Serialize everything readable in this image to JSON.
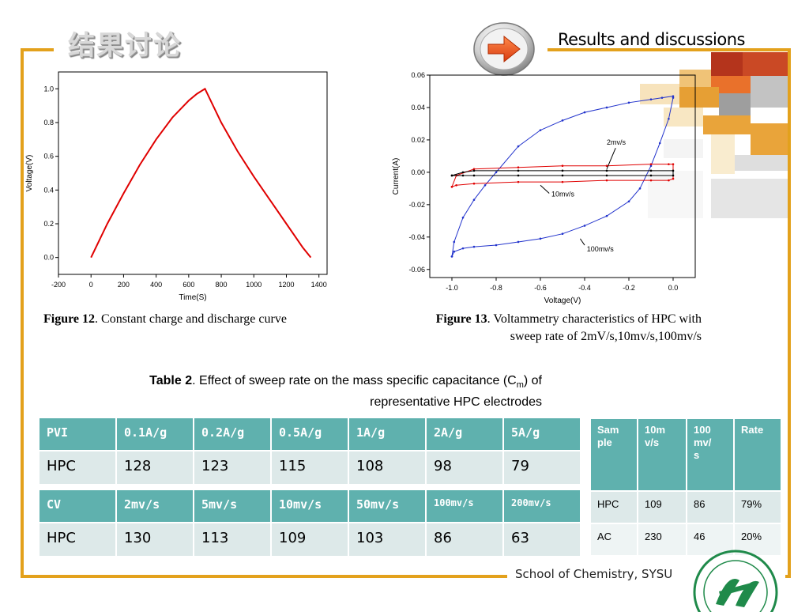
{
  "header": {
    "title_cn": "结果讨论",
    "title_en": "Results and discussions"
  },
  "colors": {
    "accent": "#e3a11c",
    "table_header": "#5fb1ae",
    "table_row": "#dde9e9",
    "curve_red": "#e00000",
    "curve_blue": "#2233cc"
  },
  "icons": {
    "nav": "arrow-right-icon",
    "logo": "university-seal-icon"
  },
  "figures": {
    "fig12": {
      "label": "Figure 12",
      "text": ". Constant charge and discharge curve"
    },
    "fig13": {
      "label": "Figure 13",
      "text_line1": ". Voltammetry characteristics of HPC with",
      "text_line2": "sweep rate of 2mV/s,10mv/s,100mv/s"
    }
  },
  "chart_data": [
    {
      "type": "line",
      "title": "",
      "xlabel": "Time(S)",
      "ylabel": "Voltage(V)",
      "xlim": [
        -200,
        1450
      ],
      "ylim": [
        -0.1,
        1.1
      ],
      "xticks": [
        -200,
        0,
        200,
        400,
        600,
        800,
        1000,
        1200,
        1400
      ],
      "yticks": [
        0.0,
        0.2,
        0.4,
        0.6,
        0.8,
        1.0
      ],
      "xtick_labels": [
        "-200",
        "0",
        "200",
        "400",
        "600",
        "800",
        "1000",
        "1200",
        "1400"
      ],
      "ytick_labels": [
        "0.0",
        "0.2",
        "0.4",
        "0.6",
        "0.8",
        "1.0"
      ],
      "series": [
        {
          "x": [
            0,
            100,
            200,
            300,
            400,
            500,
            600,
            650,
            700,
            720,
            800,
            900,
            1000,
            1100,
            1200,
            1300,
            1350
          ],
          "y": [
            0.0,
            0.2,
            0.38,
            0.55,
            0.7,
            0.83,
            0.93,
            0.97,
            1.0,
            0.96,
            0.8,
            0.63,
            0.48,
            0.34,
            0.2,
            0.06,
            0.0
          ]
        }
      ],
      "grid": false
    },
    {
      "type": "line",
      "title": "",
      "xlabel": "Voltage(V)",
      "ylabel": "Current(A)",
      "xlim": [
        -1.1,
        0.1
      ],
      "ylim": [
        -0.065,
        0.06
      ],
      "xticks": [
        -1.0,
        -0.8,
        -0.6,
        -0.4,
        -0.2,
        0.0
      ],
      "yticks": [
        -0.06,
        -0.04,
        -0.02,
        0.0,
        0.02,
        0.04,
        0.06
      ],
      "xtick_labels": [
        "-1.0",
        "-0.8",
        "-0.6",
        "-0.4",
        "-0.2",
        "0.0"
      ],
      "ytick_labels": [
        "-0.06",
        "-0.04",
        "-0.02",
        "0.00",
        "0.02",
        "0.04",
        "0.06"
      ],
      "annotations": [
        "2mv/s",
        "10mv/s",
        "100mv/s"
      ],
      "series": [
        {
          "x": [
            -1.0,
            -0.99,
            -0.95,
            -0.9,
            -0.85,
            -0.8,
            -0.7,
            -0.6,
            -0.5,
            -0.4,
            -0.3,
            -0.2,
            -0.1,
            -0.05,
            0.0,
            0.0,
            -0.02,
            -0.06,
            -0.1,
            -0.15,
            -0.2,
            -0.3,
            -0.4,
            -0.5,
            -0.6,
            -0.7,
            -0.8,
            -0.9,
            -0.95,
            -0.99,
            -1.0
          ],
          "y": [
            -0.052,
            -0.043,
            -0.028,
            -0.017,
            -0.008,
            0.0,
            0.016,
            0.026,
            0.032,
            0.037,
            0.04,
            0.043,
            0.045,
            0.046,
            0.047,
            0.046,
            0.033,
            0.018,
            0.004,
            -0.01,
            -0.018,
            -0.027,
            -0.033,
            -0.038,
            -0.041,
            -0.043,
            -0.045,
            -0.046,
            -0.047,
            -0.049,
            -0.052
          ]
        },
        {
          "x": [
            -1.0,
            -0.98,
            -0.9,
            -0.7,
            -0.5,
            -0.3,
            -0.1,
            -0.02,
            0.0,
            0.0,
            -0.02,
            -0.1,
            -0.3,
            -0.5,
            -0.7,
            -0.9,
            -0.98,
            -1.0
          ],
          "y": [
            -0.009,
            -0.002,
            0.002,
            0.003,
            0.004,
            0.004,
            0.005,
            0.005,
            0.005,
            -0.004,
            -0.005,
            -0.005,
            -0.005,
            -0.006,
            -0.006,
            -0.007,
            -0.008,
            -0.009
          ]
        },
        {
          "x": [
            -1.0,
            -0.95,
            -0.9,
            -0.7,
            -0.5,
            -0.3,
            -0.1,
            0.0,
            0.0,
            -0.1,
            -0.3,
            -0.5,
            -0.7,
            -0.9,
            -0.95,
            -1.0
          ],
          "y": [
            -0.002,
            0.0,
            0.001,
            0.001,
            0.001,
            0.001,
            0.001,
            0.001,
            -0.002,
            -0.002,
            -0.002,
            -0.002,
            -0.002,
            -0.002,
            -0.002,
            -0.002
          ]
        }
      ],
      "grid": false
    }
  ],
  "table_caption": {
    "label": "Table 2",
    "text1": ". Effect of sweep rate on the mass specific capacitance (C",
    "sub": "m",
    "text2": ") of",
    "line2": "representative HPC electrodes"
  },
  "table_pvi": {
    "headers": [
      "PVI",
      "0.1A/g",
      "0.2A/g",
      "0.5A/g",
      "1A/g",
      "2A/g",
      "5A/g"
    ],
    "row": [
      "HPC",
      "128",
      "123",
      "115",
      "108",
      "98",
      "79"
    ]
  },
  "table_cv": {
    "headers": [
      "CV",
      "2mv/s",
      "5mv/s",
      "10mv/s",
      "50mv/s",
      "100mv/s",
      "200mv/s"
    ],
    "row": [
      "HPC",
      "130",
      "113",
      "109",
      "103",
      "86",
      "63"
    ]
  },
  "table_side": {
    "headers": [
      "Sam\nple",
      "10m\nv/s",
      "100\nmv/\ns",
      "Rate"
    ],
    "rows": [
      [
        "HPC",
        "109",
        "86",
        "79%"
      ],
      [
        "AC",
        "230",
        "46",
        "20%"
      ]
    ]
  },
  "footer": {
    "school": "School of Chemistry, SYSU"
  }
}
